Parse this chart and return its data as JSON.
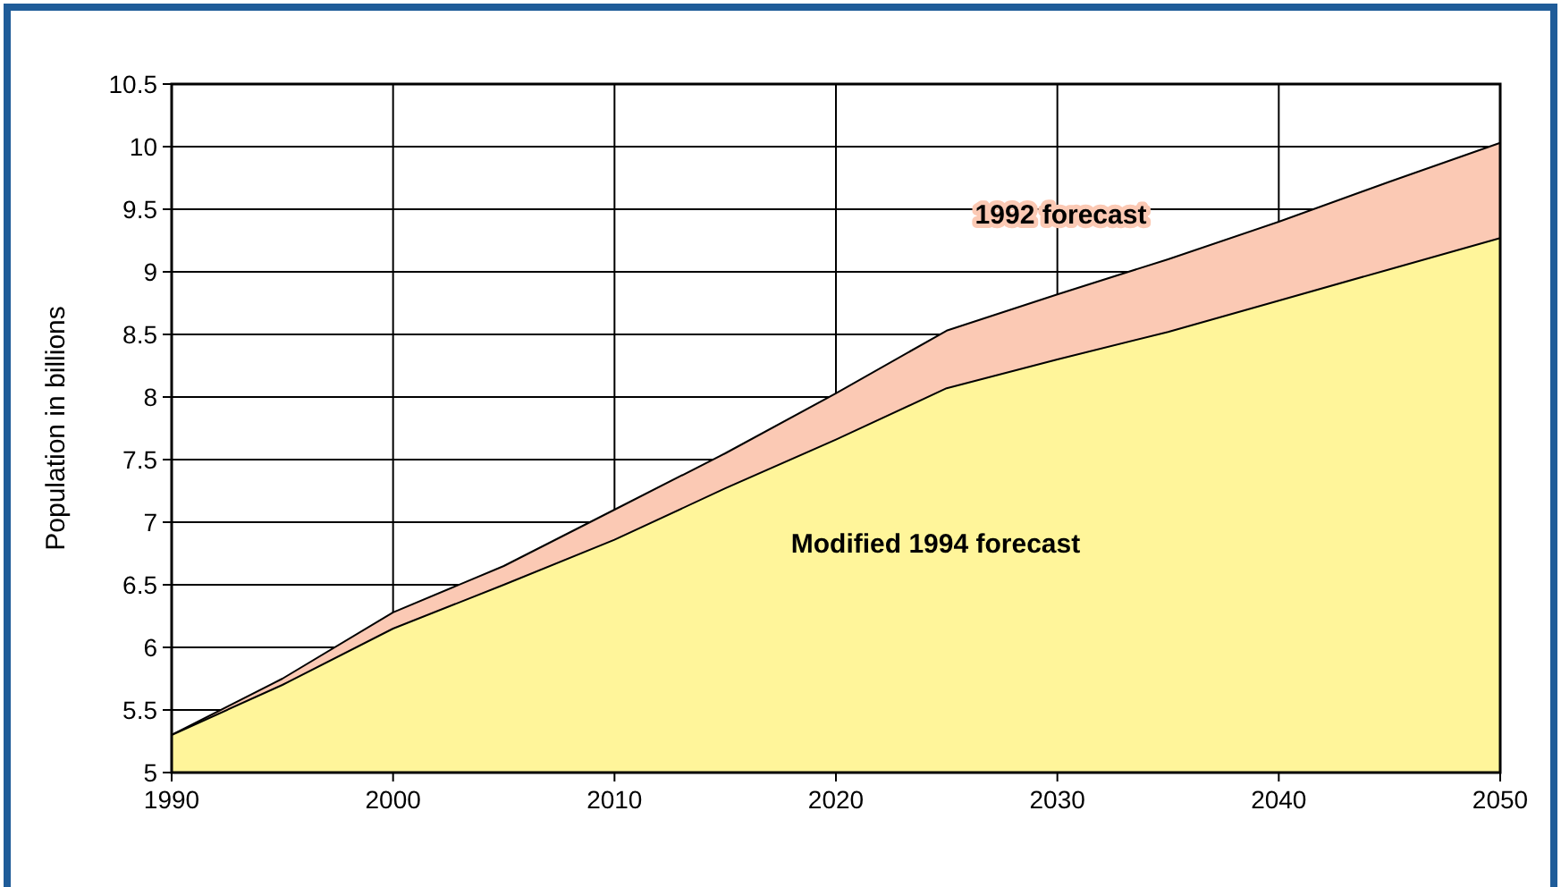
{
  "chart_data": {
    "type": "area",
    "ylabel": "Population in billions",
    "x": [
      1990,
      1995,
      2000,
      2005,
      2010,
      2015,
      2020,
      2025,
      2030,
      2035,
      2040,
      2045,
      2050
    ],
    "series": [
      {
        "name": "1992 forecast",
        "color": "#fbc9b4",
        "values": [
          5.3,
          5.75,
          6.28,
          6.65,
          7.1,
          7.55,
          8.03,
          8.53,
          8.82,
          9.1,
          9.4,
          9.72,
          10.03
        ]
      },
      {
        "name": "Modified 1994 forecast",
        "color": "#fff59a",
        "values": [
          5.3,
          5.7,
          6.15,
          6.5,
          6.86,
          7.27,
          7.66,
          8.07,
          8.3,
          8.52,
          8.77,
          9.02,
          9.27
        ]
      }
    ],
    "xlim": [
      1990,
      2050
    ],
    "xticks": [
      1990,
      2000,
      2010,
      2020,
      2030,
      2040,
      2050
    ],
    "ylim": [
      5,
      10.5
    ],
    "yticks": [
      5,
      5.5,
      6,
      6.5,
      7,
      7.5,
      8,
      8.5,
      9,
      9.5,
      10,
      10.5
    ],
    "grid": true
  }
}
